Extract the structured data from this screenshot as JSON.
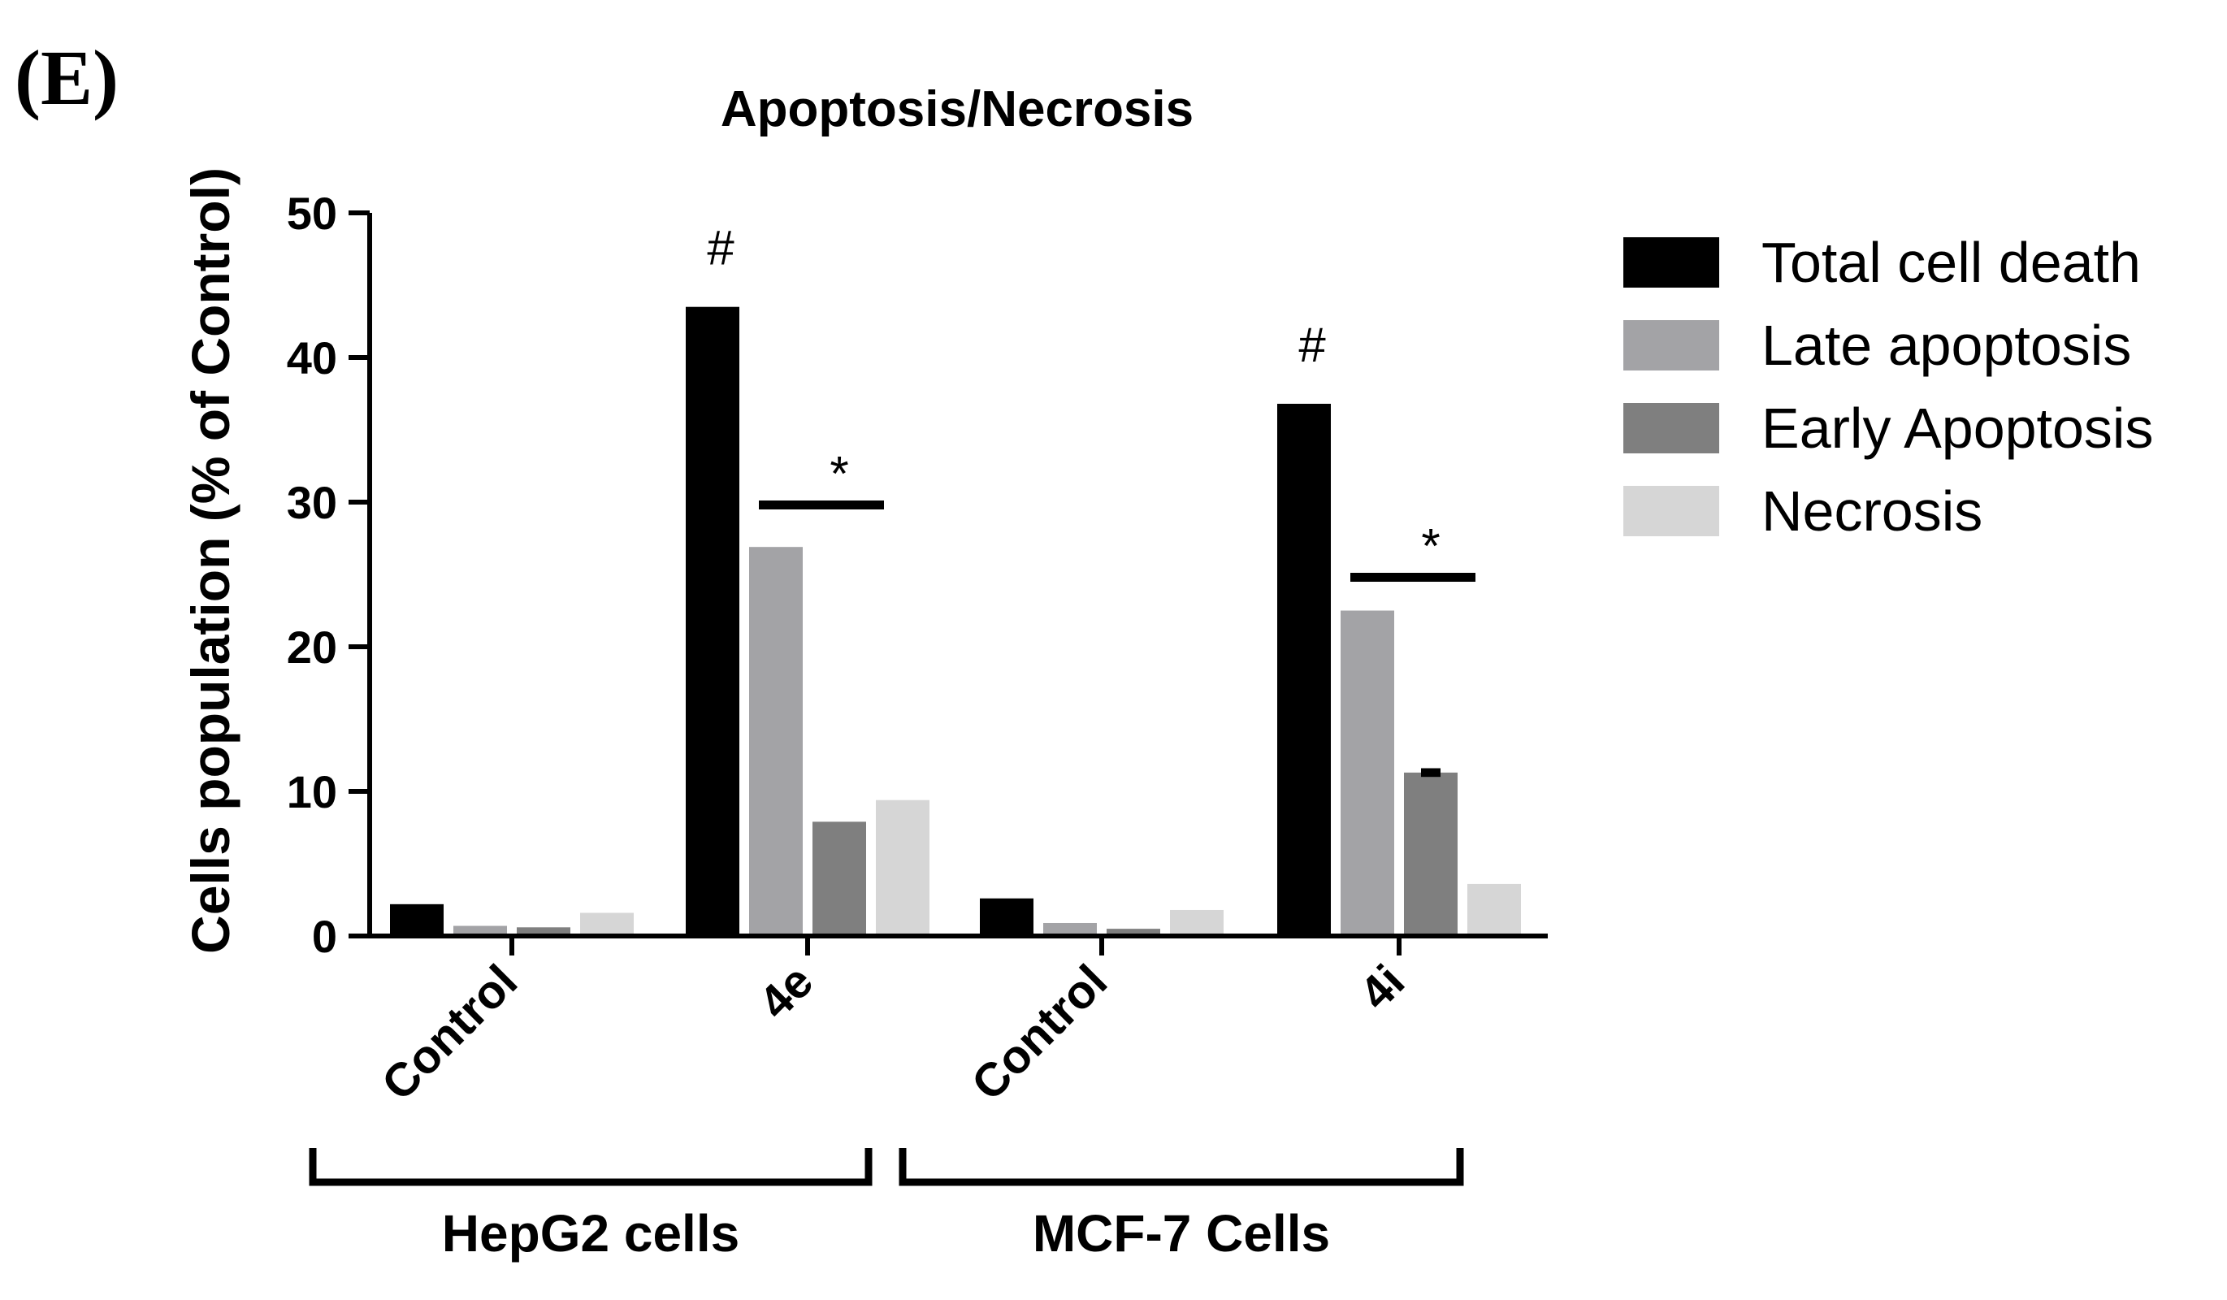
{
  "panel_label": "(E)",
  "chart_data": {
    "type": "bar",
    "title": "Apoptosis/Necrosis",
    "ylabel": "Cells population (% of Control)",
    "xlabel": "",
    "ylim": [
      0,
      50
    ],
    "yticks": [
      0,
      10,
      20,
      30,
      40,
      50
    ],
    "categories": [
      "Control",
      "4e",
      "Control",
      "4i"
    ],
    "groups": [
      {
        "label": "HepG2 cells",
        "categories": [
          0,
          1
        ]
      },
      {
        "label": "MCF-7 Cells",
        "categories": [
          2,
          3
        ]
      }
    ],
    "series": [
      {
        "name": "Total cell death",
        "color": "#000000",
        "values": [
          2.2,
          43.5,
          2.6,
          36.8
        ]
      },
      {
        "name": "Late apoptosis",
        "color": "#a3a3a6",
        "values": [
          0.7,
          26.9,
          0.9,
          22.5
        ]
      },
      {
        "name": "Early Apoptosis",
        "color": "#7f7f7f",
        "values": [
          0.6,
          7.9,
          0.5,
          11.3
        ]
      },
      {
        "name": "Necrosis",
        "color": "#d6d6d6",
        "values": [
          1.6,
          9.4,
          1.8,
          3.6
        ]
      }
    ],
    "error_bars": [
      {
        "category": 3,
        "series": 2,
        "value": 11.3,
        "err": 0.3
      }
    ],
    "annotations": [
      {
        "text": "#",
        "category": 1,
        "series": 0,
        "value": 43.5
      },
      {
        "text": "*",
        "category": 1,
        "span_series": [
          1,
          2
        ],
        "value": 29.8
      },
      {
        "text": "#",
        "category": 3,
        "series": 0,
        "value": 36.8
      },
      {
        "text": "*",
        "category": 3,
        "span_series": [
          1,
          2
        ],
        "value": 24.8
      }
    ],
    "legend_position": "right",
    "grid": false
  }
}
